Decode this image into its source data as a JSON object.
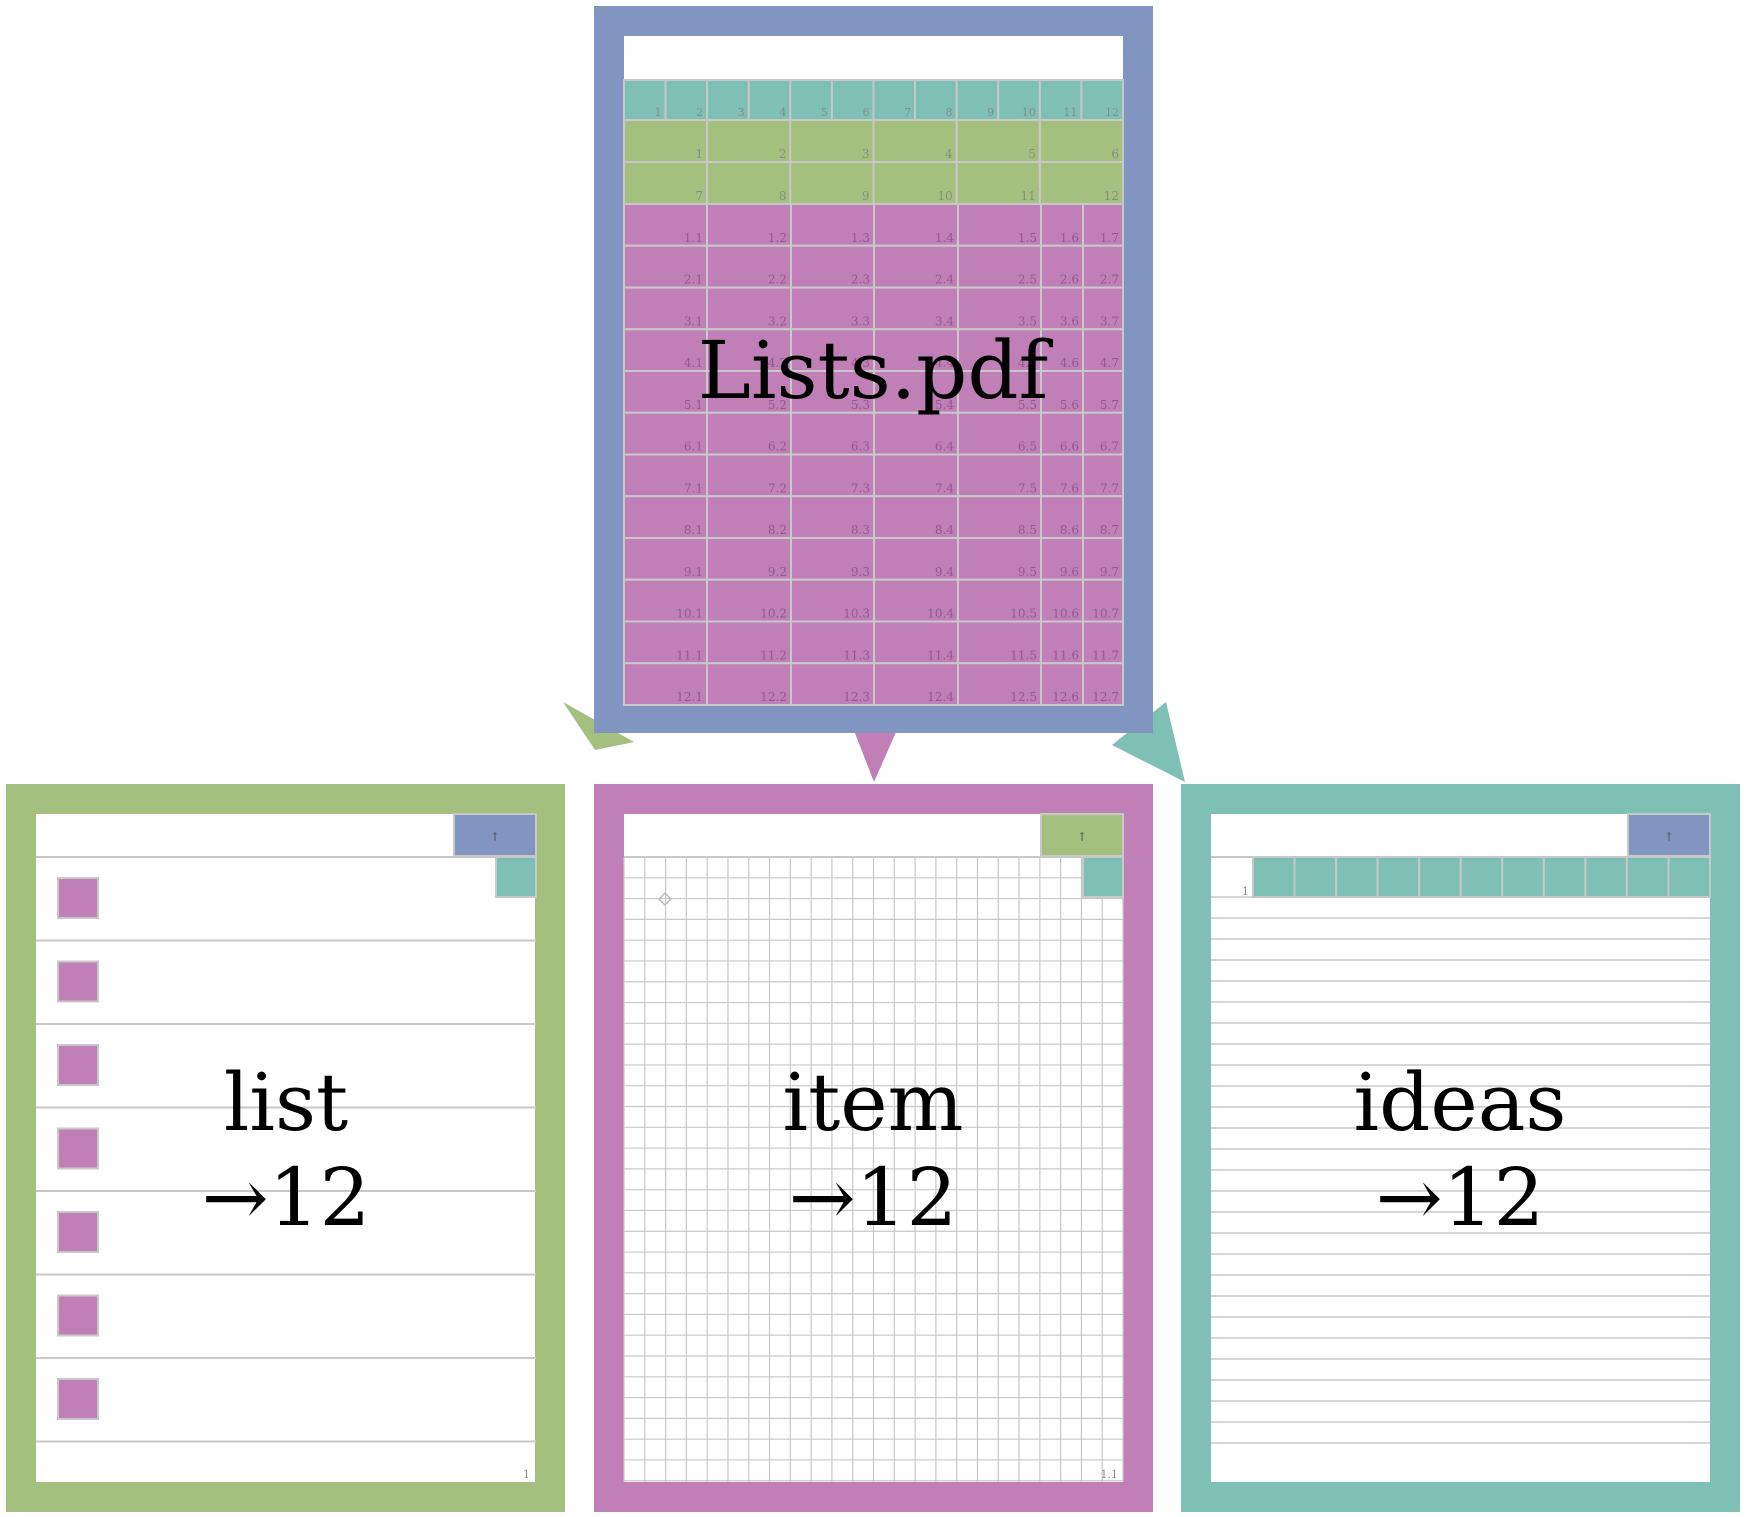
{
  "colors": {
    "blue": "#8294c0",
    "green": "#a3c07f",
    "purple": "#c080b7",
    "teal": "#7fc0b4",
    "grid_line": "#c8c8c8",
    "cell_text": "#8a8a8a"
  },
  "root": {
    "title": "Lists.pdf",
    "index_row": [
      "1",
      "2",
      "3",
      "4",
      "5",
      "6",
      "7",
      "8",
      "9",
      "10",
      "11",
      "12"
    ],
    "list_rows": [
      [
        "1",
        "2",
        "3",
        "4",
        "5",
        "6"
      ],
      [
        "7",
        "8",
        "9",
        "10",
        "11",
        "12"
      ]
    ],
    "item_col_suffixes": [
      "1",
      "2",
      "3",
      "4",
      "5",
      "6",
      "7"
    ],
    "item_row_count": 12
  },
  "children": [
    {
      "key": "list",
      "title": "list",
      "subtitle": "→12",
      "color": "green",
      "corner_button": "↑",
      "page_label": "1",
      "checkbox_count": 7
    },
    {
      "key": "item",
      "title": "item",
      "subtitle": "→12",
      "color": "purple",
      "corner_button": "↑",
      "page_label": "1.1"
    },
    {
      "key": "ideas",
      "title": "ideas",
      "subtitle": "→12",
      "color": "teal",
      "corner_button": "↑",
      "row_label": "1",
      "tab_count": 11
    }
  ]
}
